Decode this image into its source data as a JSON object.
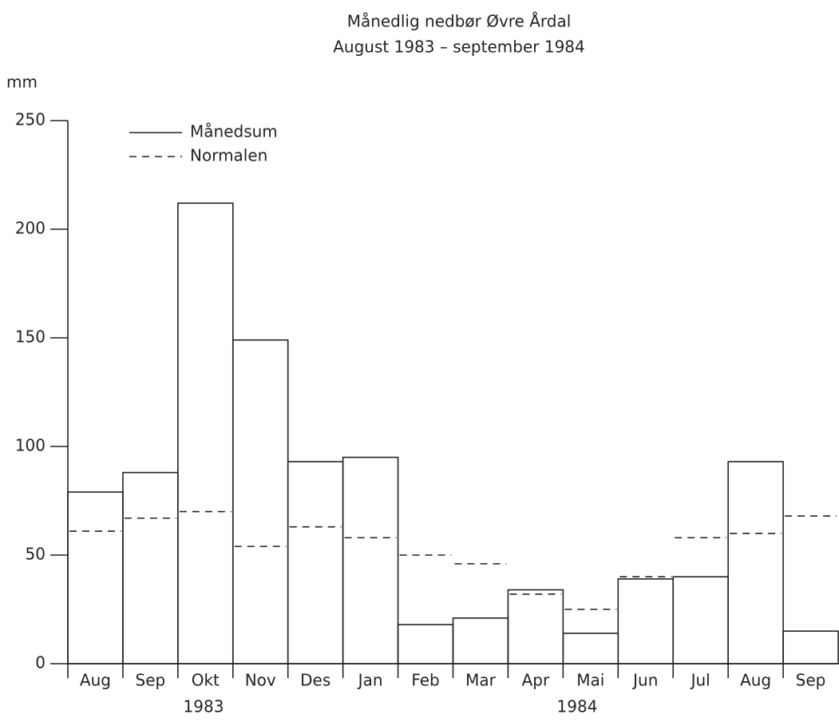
{
  "chart_data": {
    "type": "bar",
    "title": "Månedlig nedbør Øvre Årdal",
    "subtitle": "August 1983 – september 1984",
    "y_label": "mm",
    "categories": [
      "Aug",
      "Sep",
      "Okt",
      "Nov",
      "Des",
      "Jan",
      "Feb",
      "Mar",
      "Apr",
      "Mai",
      "Jun",
      "Jul",
      "Aug",
      "Sep"
    ],
    "year_labels": [
      "1983",
      "1984"
    ],
    "series": [
      {
        "name": "Månedsum",
        "color": "#222222",
        "style": "solid",
        "values": [
          79,
          88,
          212,
          149,
          93,
          95,
          18,
          21,
          34,
          14,
          39,
          40,
          93,
          15
        ]
      },
      {
        "name": "Normalen",
        "color": "#222222",
        "style": "dashed",
        "values": [
          61,
          67,
          70,
          54,
          63,
          58,
          50,
          46,
          32,
          25,
          40,
          58,
          60,
          68
        ]
      }
    ],
    "ylim": [
      0,
      250
    ],
    "yticks": [
      0,
      50,
      100,
      150,
      200,
      250
    ],
    "grid": false
  }
}
